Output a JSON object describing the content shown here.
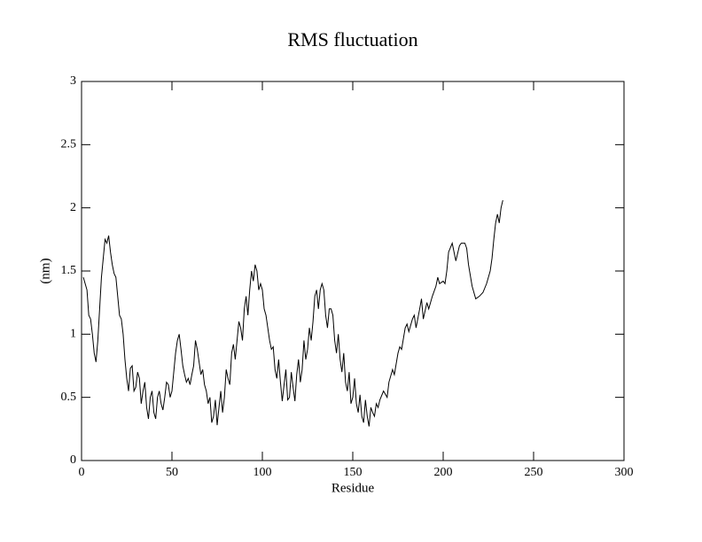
{
  "chart_data": {
    "type": "line",
    "title": "RMS fluctuation",
    "x_label": "Residue",
    "y_label": "(nm)",
    "xlim": [
      0,
      300
    ],
    "xticks": [
      0,
      50,
      100,
      150,
      200,
      250,
      300
    ],
    "ylim": [
      0,
      3
    ],
    "yticks": [
      0,
      0.5,
      1,
      1.5,
      2,
      2.5,
      3
    ],
    "series": [
      {
        "color": "#000000",
        "x": [
          1,
          2,
          3,
          4,
          5,
          6,
          7,
          8,
          9,
          10,
          11,
          12,
          13,
          14,
          15,
          16,
          17,
          18,
          19,
          20,
          21,
          22,
          23,
          24,
          25,
          26,
          27,
          28,
          29,
          30,
          31,
          32,
          33,
          34,
          35,
          36,
          37,
          38,
          39,
          40,
          41,
          42,
          43,
          44,
          45,
          46,
          47,
          48,
          49,
          50,
          51,
          52,
          53,
          54,
          55,
          56,
          57,
          58,
          59,
          60,
          61,
          62,
          63,
          64,
          65,
          66,
          67,
          68,
          69,
          70,
          71,
          72,
          73,
          74,
          75,
          76,
          77,
          78,
          79,
          80,
          81,
          82,
          83,
          84,
          85,
          86,
          87,
          88,
          89,
          90,
          91,
          92,
          93,
          94,
          95,
          96,
          97,
          98,
          99,
          100,
          101,
          102,
          103,
          104,
          105,
          106,
          107,
          108,
          109,
          110,
          111,
          112,
          113,
          114,
          115,
          116,
          117,
          118,
          119,
          120,
          121,
          122,
          123,
          124,
          125,
          126,
          127,
          128,
          129,
          130,
          131,
          132,
          133,
          134,
          135,
          136,
          137,
          138,
          139,
          140,
          141,
          142,
          143,
          144,
          145,
          146,
          147,
          148,
          149,
          150,
          151,
          152,
          153,
          154,
          155,
          156,
          157,
          158,
          159,
          160,
          161,
          162,
          163,
          164,
          165,
          167,
          169,
          170,
          172,
          173,
          175,
          176,
          177,
          179,
          180,
          181,
          183,
          184,
          185,
          187,
          188,
          189,
          191,
          192,
          194,
          196,
          197,
          198,
          200,
          201,
          202,
          203,
          205,
          206,
          207,
          209,
          210,
          212,
          213,
          214,
          216,
          218,
          220,
          222,
          224,
          226,
          227,
          228,
          229,
          230,
          231,
          232,
          233
        ],
        "values": [
          1.45,
          1.4,
          1.35,
          1.15,
          1.12,
          1.0,
          0.85,
          0.78,
          0.95,
          1.2,
          1.45,
          1.6,
          1.75,
          1.72,
          1.78,
          1.65,
          1.55,
          1.48,
          1.45,
          1.3,
          1.15,
          1.12,
          1.0,
          0.8,
          0.65,
          0.55,
          0.73,
          0.75,
          0.55,
          0.58,
          0.7,
          0.65,
          0.45,
          0.55,
          0.62,
          0.42,
          0.33,
          0.5,
          0.55,
          0.38,
          0.33,
          0.5,
          0.55,
          0.45,
          0.4,
          0.5,
          0.62,
          0.6,
          0.5,
          0.55,
          0.7,
          0.85,
          0.95,
          1.0,
          0.88,
          0.75,
          0.68,
          0.62,
          0.65,
          0.6,
          0.68,
          0.75,
          0.95,
          0.88,
          0.78,
          0.68,
          0.72,
          0.6,
          0.55,
          0.45,
          0.5,
          0.3,
          0.35,
          0.48,
          0.28,
          0.42,
          0.55,
          0.38,
          0.5,
          0.72,
          0.65,
          0.6,
          0.85,
          0.92,
          0.8,
          0.95,
          1.1,
          1.05,
          0.95,
          1.2,
          1.3,
          1.15,
          1.35,
          1.5,
          1.42,
          1.55,
          1.5,
          1.35,
          1.4,
          1.35,
          1.2,
          1.15,
          1.05,
          0.95,
          0.88,
          0.9,
          0.72,
          0.65,
          0.8,
          0.62,
          0.47,
          0.6,
          0.72,
          0.48,
          0.5,
          0.7,
          0.58,
          0.47,
          0.68,
          0.8,
          0.62,
          0.72,
          0.95,
          0.8,
          0.88,
          1.05,
          0.95,
          1.1,
          1.3,
          1.35,
          1.2,
          1.35,
          1.4,
          1.35,
          1.15,
          1.05,
          1.2,
          1.2,
          1.15,
          0.95,
          0.85,
          1.0,
          0.8,
          0.7,
          0.85,
          0.62,
          0.55,
          0.7,
          0.45,
          0.5,
          0.65,
          0.45,
          0.38,
          0.52,
          0.35,
          0.3,
          0.48,
          0.35,
          0.27,
          0.42,
          0.38,
          0.35,
          0.45,
          0.42,
          0.48,
          0.55,
          0.5,
          0.62,
          0.72,
          0.68,
          0.85,
          0.9,
          0.88,
          1.05,
          1.08,
          1.02,
          1.12,
          1.15,
          1.05,
          1.2,
          1.28,
          1.12,
          1.25,
          1.2,
          1.3,
          1.38,
          1.45,
          1.4,
          1.42,
          1.4,
          1.5,
          1.65,
          1.72,
          1.65,
          1.58,
          1.7,
          1.72,
          1.72,
          1.68,
          1.55,
          1.38,
          1.28,
          1.3,
          1.33,
          1.4,
          1.5,
          1.6,
          1.75,
          1.88,
          1.95,
          1.88,
          2.0,
          2.06
        ]
      }
    ]
  }
}
